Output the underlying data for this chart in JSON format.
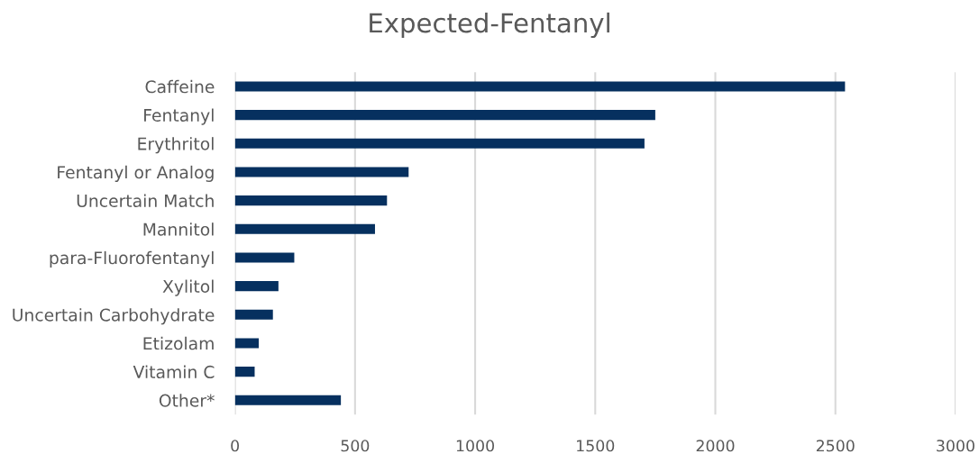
{
  "chart_data": {
    "type": "bar",
    "orientation": "horizontal",
    "title": "Expected-Fentanyl",
    "categories": [
      "Caffeine",
      "Fentanyl",
      "Erythritol",
      "Fentanyl or Analog",
      "Uncertain Match",
      "Mannitol",
      "para-Fluorofentanyl",
      "Xylitol",
      "Uncertain Carbohydrate",
      "Etizolam",
      "Vitamin C",
      "Other*"
    ],
    "values": [
      2540,
      1750,
      1705,
      723,
      633,
      583,
      247,
      181,
      158,
      99,
      82,
      441
    ],
    "color": "#06305f",
    "xlim": [
      0,
      3000
    ],
    "xticks": [
      0,
      500,
      1000,
      1500,
      2000,
      2500,
      3000
    ],
    "grid": "x",
    "legend": false
  }
}
